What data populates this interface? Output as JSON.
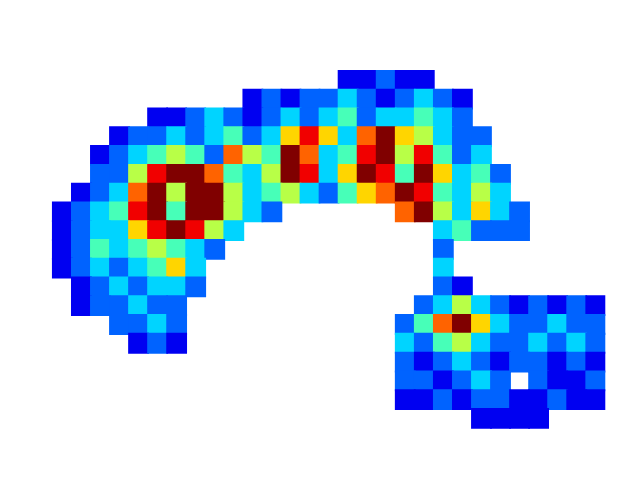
{
  "chart_data": {
    "type": "heatmap",
    "color": "jet",
    "zlim": [
      0,
      9
    ],
    "grid": false,
    "tick_labels": false,
    "cells": [
      [
        null,
        null,
        null,
        null,
        null,
        null,
        null,
        null,
        null,
        null,
        null,
        null,
        null,
        null,
        null,
        null,
        null,
        null,
        null,
        null,
        null,
        null,
        null,
        null,
        null,
        null,
        null,
        null,
        null,
        null,
        null
      ],
      [
        null,
        null,
        null,
        null,
        null,
        null,
        null,
        null,
        null,
        null,
        null,
        null,
        null,
        null,
        null,
        null,
        null,
        null,
        null,
        null,
        null,
        null,
        null,
        null,
        null,
        null,
        null,
        null,
        null,
        null,
        null
      ],
      [
        null,
        null,
        null,
        null,
        null,
        null,
        null,
        null,
        null,
        null,
        null,
        null,
        null,
        null,
        null,
        null,
        null,
        null,
        null,
        null,
        null,
        null,
        null,
        null,
        null,
        null,
        null,
        null,
        null,
        null,
        null
      ],
      [
        null,
        null,
        null,
        null,
        null,
        null,
        null,
        null,
        null,
        null,
        null,
        null,
        null,
        null,
        null,
        null,
        null,
        1,
        1,
        2,
        1,
        1,
        null,
        null,
        null,
        null,
        null,
        null,
        null,
        null,
        null
      ],
      [
        null,
        null,
        null,
        null,
        null,
        null,
        null,
        null,
        null,
        null,
        null,
        null,
        1,
        2,
        1,
        2,
        2,
        3,
        2,
        1,
        2,
        3,
        2,
        1,
        null,
        null,
        null,
        null,
        null,
        null,
        null
      ],
      [
        null,
        null,
        null,
        null,
        null,
        null,
        null,
        1,
        1,
        2,
        3,
        2,
        1,
        2,
        3,
        2,
        3,
        4,
        2,
        3,
        3,
        4,
        3,
        2,
        null,
        null,
        null,
        null,
        null,
        null,
        null
      ],
      [
        null,
        null,
        null,
        null,
        null,
        1,
        2,
        2,
        3,
        2,
        3,
        4,
        2,
        3,
        6,
        8,
        6,
        3,
        7,
        9,
        6,
        5,
        3,
        2,
        2,
        null,
        null,
        null,
        null,
        null,
        null
      ],
      [
        null,
        null,
        null,
        null,
        1,
        2,
        3,
        4,
        5,
        4,
        2,
        7,
        5,
        4,
        9,
        7,
        3,
        4,
        8,
        9,
        5,
        8,
        4,
        2,
        3,
        null,
        null,
        null,
        null,
        null,
        null
      ],
      [
        null,
        null,
        null,
        null,
        2,
        2,
        5,
        8,
        9,
        9,
        7,
        4,
        3,
        5,
        9,
        8,
        3,
        6,
        9,
        8,
        4,
        9,
        6,
        3,
        4,
        2,
        null,
        null,
        null,
        null,
        null
      ],
      [
        null,
        null,
        null,
        1,
        2,
        3,
        7,
        9,
        5,
        9,
        9,
        5,
        3,
        4,
        5,
        3,
        2,
        4,
        6,
        7,
        9,
        8,
        4,
        3,
        5,
        3,
        null,
        null,
        null,
        null,
        null
      ],
      [
        null,
        null,
        1,
        2,
        3,
        4,
        8,
        9,
        4,
        9,
        9,
        5,
        3,
        2,
        null,
        null,
        null,
        null,
        null,
        null,
        7,
        9,
        5,
        3,
        6,
        3,
        2,
        null,
        null,
        null,
        null
      ],
      [
        null,
        null,
        1,
        2,
        3,
        3,
        6,
        8,
        9,
        8,
        5,
        3,
        null,
        null,
        null,
        null,
        null,
        null,
        null,
        null,
        null,
        null,
        3,
        4,
        2,
        2,
        2,
        null,
        null,
        null,
        null
      ],
      [
        null,
        null,
        1,
        2,
        4,
        3,
        4,
        5,
        4,
        3,
        2,
        null,
        null,
        null,
        null,
        null,
        null,
        null,
        null,
        null,
        null,
        null,
        2,
        null,
        null,
        null,
        null,
        null,
        null,
        null,
        null
      ],
      [
        null,
        null,
        1,
        2,
        3,
        2,
        3,
        4,
        6,
        3,
        null,
        null,
        null,
        null,
        null,
        null,
        null,
        null,
        null,
        null,
        null,
        null,
        3,
        null,
        null,
        null,
        null,
        null,
        null,
        null,
        null
      ],
      [
        null,
        null,
        null,
        1,
        2,
        3,
        2,
        3,
        3,
        2,
        null,
        null,
        null,
        null,
        null,
        null,
        null,
        null,
        null,
        null,
        null,
        null,
        2,
        1,
        null,
        null,
        null,
        null,
        null,
        null,
        null
      ],
      [
        null,
        null,
        null,
        1,
        2,
        2,
        3,
        2,
        2,
        null,
        null,
        null,
        null,
        null,
        null,
        null,
        null,
        null,
        null,
        null,
        null,
        2,
        3,
        5,
        3,
        2,
        1,
        2,
        1,
        2,
        1
      ],
      [
        null,
        null,
        null,
        null,
        null,
        2,
        2,
        3,
        2,
        null,
        null,
        null,
        null,
        null,
        null,
        null,
        null,
        null,
        null,
        null,
        2,
        4,
        7,
        9,
        6,
        3,
        2,
        2,
        3,
        2,
        2
      ],
      [
        null,
        null,
        null,
        null,
        null,
        null,
        1,
        2,
        1,
        null,
        null,
        null,
        null,
        null,
        null,
        null,
        null,
        null,
        null,
        null,
        3,
        2,
        4,
        5,
        3,
        2,
        2,
        3,
        2,
        3,
        2
      ],
      [
        null,
        null,
        null,
        null,
        null,
        null,
        null,
        null,
        null,
        null,
        null,
        null,
        null,
        null,
        null,
        null,
        null,
        null,
        null,
        null,
        2,
        1,
        2,
        3,
        2,
        1,
        2,
        2,
        1,
        2,
        1
      ],
      [
        null,
        null,
        null,
        null,
        null,
        null,
        null,
        null,
        null,
        null,
        null,
        null,
        null,
        null,
        null,
        null,
        null,
        null,
        null,
        null,
        2,
        2,
        1,
        2,
        3,
        2,
        null,
        2,
        1,
        1,
        2
      ],
      [
        null,
        null,
        null,
        null,
        null,
        null,
        null,
        null,
        null,
        null,
        null,
        null,
        null,
        null,
        null,
        null,
        null,
        null,
        null,
        null,
        1,
        1,
        2,
        1,
        2,
        2,
        1,
        1,
        2,
        1,
        1
      ],
      [
        null,
        null,
        null,
        null,
        null,
        null,
        null,
        null,
        null,
        null,
        null,
        null,
        null,
        null,
        null,
        null,
        null,
        null,
        null,
        null,
        null,
        null,
        null,
        null,
        1,
        1,
        1,
        1,
        null,
        null,
        null
      ],
      [
        null,
        null,
        null,
        null,
        null,
        null,
        null,
        null,
        null,
        null,
        null,
        null,
        null,
        null,
        null,
        null,
        null,
        null,
        null,
        null,
        null,
        null,
        null,
        null,
        null,
        null,
        null,
        null,
        null,
        null,
        null
      ],
      [
        null,
        null,
        null,
        null,
        null,
        null,
        null,
        null,
        null,
        null,
        null,
        null,
        null,
        null,
        null,
        null,
        null,
        null,
        null,
        null,
        null,
        null,
        null,
        null,
        null,
        null,
        null,
        null,
        null,
        null,
        null
      ]
    ]
  }
}
